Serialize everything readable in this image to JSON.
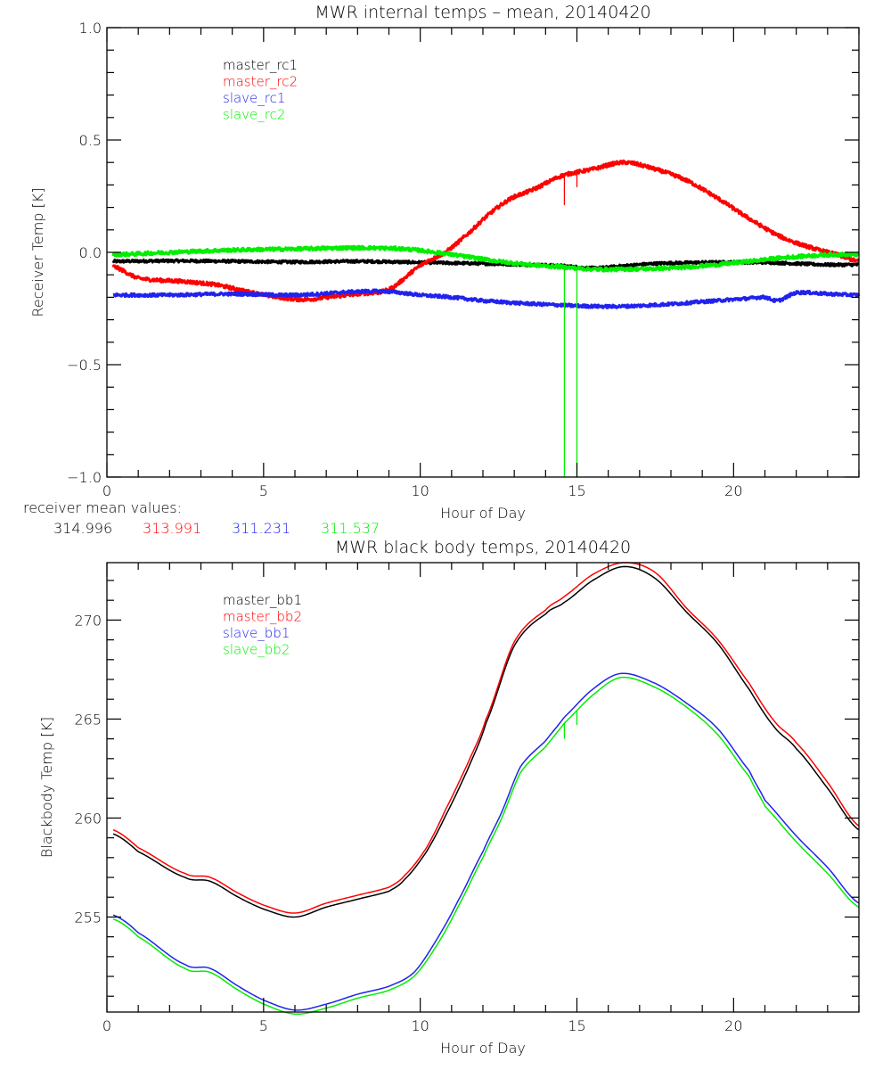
{
  "chart_data": [
    {
      "type": "line",
      "title": "MWR internal temps – mean, 20140420",
      "xlabel": "Hour of Day",
      "ylabel": "Receiver Temp [K]",
      "xlim": [
        0,
        24
      ],
      "ylim": [
        -1.0,
        1.0
      ],
      "xticks": [
        0,
        5,
        10,
        15,
        20
      ],
      "xtick_labels": [
        "0",
        "5",
        "10",
        "15",
        "20"
      ],
      "yticks": [
        -1.0,
        -0.5,
        0.0,
        0.5,
        1.0
      ],
      "ytick_labels": [
        "−1.0",
        "−0.5",
        "0.0",
        "0.5",
        "1.0"
      ],
      "grid": false,
      "legend_position": "top-left",
      "series": [
        {
          "name": "master_rc1",
          "color": "#000000",
          "x": [
            0.2,
            2,
            4,
            6,
            8,
            10,
            12,
            13.5,
            14.5,
            15.5,
            16.5,
            17.5,
            19,
            21,
            22,
            23,
            24
          ],
          "y": [
            -0.04,
            -0.038,
            -0.04,
            -0.043,
            -0.04,
            -0.045,
            -0.05,
            -0.055,
            -0.06,
            -0.07,
            -0.06,
            -0.05,
            -0.045,
            -0.045,
            -0.05,
            -0.055,
            -0.055
          ],
          "noise": 0.006
        },
        {
          "name": "master_rc2",
          "color": "#ff0000",
          "x": [
            0.2,
            1,
            2.5,
            3.5,
            4.5,
            5.5,
            6.3,
            7,
            8,
            9,
            10,
            10.8,
            11.5,
            12.2,
            12.9,
            13.6,
            14.5,
            15.5,
            16.5,
            17.5,
            18.5,
            19.5,
            20.5,
            21.5,
            22.5,
            23.3,
            24
          ],
          "y": [
            -0.063,
            -0.115,
            -0.13,
            -0.145,
            -0.175,
            -0.2,
            -0.21,
            -0.2,
            -0.185,
            -0.165,
            -0.06,
            0.0,
            0.08,
            0.17,
            0.24,
            0.28,
            0.34,
            0.37,
            0.4,
            0.37,
            0.32,
            0.24,
            0.15,
            0.07,
            0.02,
            -0.01,
            -0.04
          ],
          "spikes": [
            {
              "x": 14.6,
              "y": 0.21
            },
            {
              "x": 15.0,
              "y": 0.29
            }
          ],
          "noise": 0.008
        },
        {
          "name": "slave_rc1",
          "color": "#2222ee",
          "x": [
            0.2,
            2,
            4,
            6,
            8,
            9,
            10,
            11,
            12,
            13,
            14.5,
            15.5,
            16.5,
            18,
            19.5,
            20.5,
            21,
            21.4,
            22,
            23,
            24
          ],
          "y": [
            -0.19,
            -0.19,
            -0.185,
            -0.19,
            -0.175,
            -0.175,
            -0.19,
            -0.2,
            -0.215,
            -0.225,
            -0.235,
            -0.24,
            -0.24,
            -0.23,
            -0.215,
            -0.205,
            -0.2,
            -0.215,
            -0.18,
            -0.185,
            -0.19
          ],
          "noise": 0.007
        },
        {
          "name": "slave_rc2",
          "color": "#00ee00",
          "x": [
            0.2,
            2,
            4,
            6,
            8,
            9.5,
            10.5,
            11.5,
            12.5,
            13.5,
            14.5,
            15.5,
            16.5,
            18,
            19.5,
            20.5,
            21.5,
            22.5,
            23.3,
            24
          ],
          "y": [
            -0.01,
            0.0,
            0.01,
            0.015,
            0.02,
            0.015,
            0.0,
            -0.02,
            -0.04,
            -0.055,
            -0.065,
            -0.075,
            -0.075,
            -0.07,
            -0.055,
            -0.04,
            -0.025,
            -0.015,
            -0.01,
            -0.01
          ],
          "spikes": [
            {
              "x": 14.6,
              "y": -1.0
            },
            {
              "x": 15.0,
              "y": -1.0
            }
          ],
          "noise": 0.008
        }
      ],
      "annotation": {
        "label": "receiver mean values:",
        "values": [
          {
            "text": "314.996",
            "color": "#000000"
          },
          {
            "text": "313.991",
            "color": "#ff0000"
          },
          {
            "text": "311.231",
            "color": "#2222ee"
          },
          {
            "text": "311.537",
            "color": "#00ee00"
          }
        ]
      }
    },
    {
      "type": "line",
      "title": "MWR black body temps, 20140420",
      "xlabel": "Hour of Day",
      "ylabel": "Blackbody Temp [K]",
      "xlim": [
        0,
        24
      ],
      "ylim": [
        250.2,
        272.9
      ],
      "xticks": [
        0,
        5,
        10,
        15,
        20
      ],
      "xtick_labels": [
        "0",
        "5",
        "10",
        "15",
        "20"
      ],
      "yticks": [
        255,
        260,
        265,
        270
      ],
      "ytick_labels": [
        "255",
        "260",
        "265",
        "270"
      ],
      "grid": false,
      "legend_position": "top-left",
      "series": [
        {
          "name": "master_bb1",
          "color": "#000000",
          "x": [
            0.2,
            1,
            2.5,
            3.3,
            4.2,
            5,
            6,
            7,
            8,
            9,
            9.5,
            10.2,
            10.8,
            11.5,
            12.1,
            13,
            14,
            14.6,
            15.5,
            16.5,
            17.5,
            18.5,
            19.5,
            20.5,
            21.3,
            22,
            23,
            24
          ],
          "y": [
            259.2,
            258.3,
            257.0,
            256.8,
            256.0,
            255.4,
            255.0,
            255.5,
            255.9,
            256.3,
            256.9,
            258.3,
            260.1,
            262.4,
            264.8,
            268.7,
            270.3,
            270.9,
            272.0,
            272.7,
            272.1,
            270.4,
            268.8,
            266.5,
            264.6,
            263.5,
            261.5,
            259.4
          ]
        },
        {
          "name": "master_bb2",
          "color": "#ff0000",
          "x": [
            0.2,
            1,
            2.5,
            3.3,
            4.2,
            5,
            6,
            7,
            8,
            9,
            9.5,
            10.2,
            10.8,
            11.5,
            12.1,
            13,
            14,
            14.6,
            15.5,
            16.5,
            17.5,
            18.5,
            19.5,
            20.5,
            21.3,
            22,
            23,
            24
          ],
          "y": [
            259.4,
            258.5,
            257.2,
            257.0,
            256.2,
            255.6,
            255.2,
            255.7,
            256.1,
            256.5,
            257.1,
            258.5,
            260.4,
            262.7,
            265.0,
            268.9,
            270.5,
            271.2,
            272.3,
            272.9,
            272.4,
            270.6,
            269.0,
            266.8,
            264.9,
            263.8,
            261.8,
            259.6
          ]
        },
        {
          "name": "slave_bb1",
          "color": "#2222ee",
          "x": [
            0.2,
            1,
            2.5,
            3.3,
            4.2,
            5,
            6,
            7,
            8,
            9,
            9.8,
            10.5,
            11.2,
            12,
            12.6,
            13.2,
            14,
            14.6,
            15.5,
            16.4,
            17.5,
            18.5,
            19.5,
            20.5,
            21,
            22,
            23,
            24
          ],
          "y": [
            255.1,
            254.2,
            252.6,
            252.4,
            251.5,
            250.8,
            250.3,
            250.6,
            251.1,
            251.5,
            252.2,
            253.8,
            255.8,
            258.3,
            260.3,
            262.6,
            263.9,
            265.1,
            266.5,
            267.3,
            266.8,
            265.8,
            264.5,
            262.4,
            260.9,
            259.1,
            257.5,
            255.7
          ]
        },
        {
          "name": "slave_bb2",
          "color": "#00ee00",
          "x": [
            0.2,
            1,
            2.5,
            3.3,
            4.2,
            5,
            6,
            7,
            8,
            9,
            9.8,
            10.5,
            11.2,
            12,
            12.6,
            13.2,
            14,
            14.6,
            15.5,
            16.4,
            17.5,
            18.5,
            19.5,
            20.5,
            21,
            22,
            23,
            24
          ],
          "y": [
            254.9,
            254.0,
            252.4,
            252.2,
            251.3,
            250.6,
            250.1,
            250.4,
            250.9,
            251.3,
            252.0,
            253.5,
            255.5,
            258.0,
            260.0,
            262.3,
            263.6,
            264.8,
            266.2,
            267.1,
            266.6,
            265.6,
            264.2,
            262.1,
            260.6,
            258.8,
            257.2,
            255.5
          ],
          "spikes": [
            {
              "x": 14.6,
              "y": 264.0
            },
            {
              "x": 15.0,
              "y": 264.7
            }
          ]
        }
      ]
    }
  ]
}
